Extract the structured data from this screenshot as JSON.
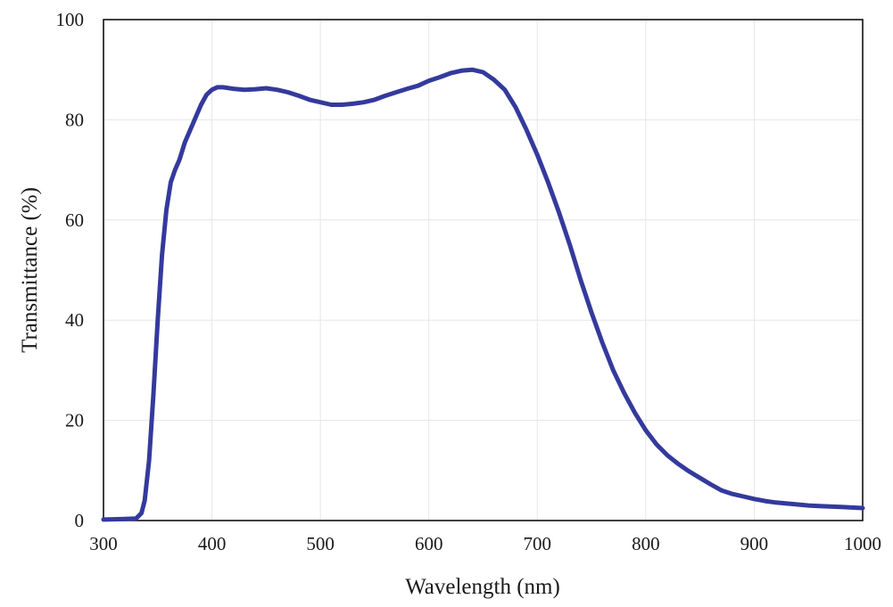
{
  "chart_data": {
    "type": "line",
    "title": "",
    "xlabel": "Wavelength (nm)",
    "ylabel": "Transmittance (%)",
    "xlim": [
      300,
      1000
    ],
    "ylim": [
      0,
      100
    ],
    "xticks": [
      300,
      400,
      500,
      600,
      700,
      800,
      900,
      1000
    ],
    "yticks": [
      0,
      20,
      40,
      60,
      80,
      100
    ],
    "grid": true,
    "legend": "none",
    "series": [
      {
        "name": "Transmittance",
        "color": "#343a9c",
        "x": [
          300,
          320,
          330,
          335,
          338,
          342,
          346,
          350,
          354,
          358,
          362,
          366,
          370,
          375,
          380,
          385,
          390,
          395,
          400,
          405,
          410,
          420,
          430,
          440,
          450,
          460,
          470,
          480,
          490,
          500,
          510,
          520,
          530,
          540,
          550,
          560,
          570,
          580,
          590,
          600,
          610,
          620,
          630,
          640,
          650,
          660,
          670,
          680,
          690,
          700,
          710,
          720,
          730,
          740,
          750,
          760,
          770,
          780,
          790,
          800,
          810,
          820,
          830,
          840,
          850,
          860,
          870,
          880,
          890,
          900,
          910,
          920,
          930,
          940,
          950,
          960,
          970,
          980,
          990,
          1000
        ],
        "y": [
          0.2,
          0.3,
          0.4,
          1.5,
          4.0,
          12.0,
          25.0,
          40.0,
          53.0,
          62.0,
          67.5,
          70.0,
          72.0,
          75.5,
          78.0,
          80.5,
          83.0,
          85.0,
          86.0,
          86.5,
          86.5,
          86.2,
          86.0,
          86.1,
          86.3,
          86.0,
          85.5,
          84.8,
          84.0,
          83.5,
          83.0,
          83.0,
          83.2,
          83.5,
          84.0,
          84.8,
          85.5,
          86.2,
          86.8,
          87.8,
          88.5,
          89.3,
          89.8,
          90.0,
          89.5,
          88.0,
          86.0,
          82.5,
          78.0,
          73.0,
          67.5,
          61.5,
          55.0,
          48.0,
          41.5,
          35.5,
          30.0,
          25.5,
          21.5,
          18.0,
          15.2,
          13.0,
          11.3,
          9.8,
          8.5,
          7.2,
          6.0,
          5.3,
          4.8,
          4.3,
          3.9,
          3.6,
          3.4,
          3.2,
          3.0,
          2.9,
          2.8,
          2.7,
          2.6,
          2.5
        ]
      }
    ]
  }
}
